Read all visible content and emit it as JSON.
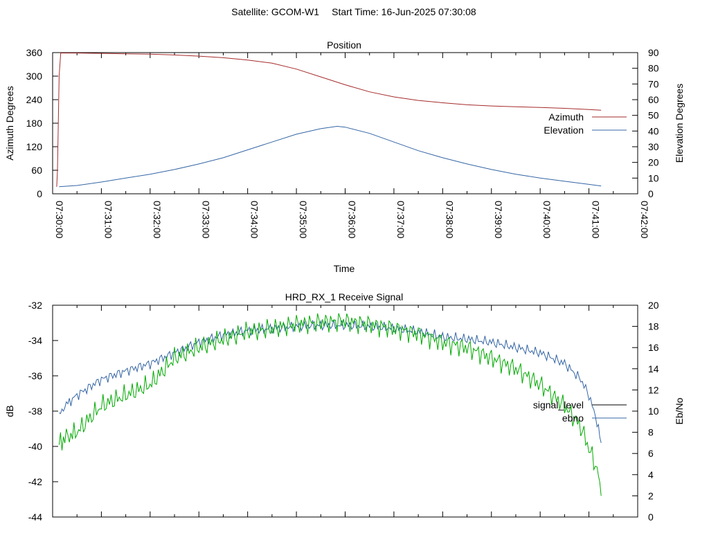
{
  "header": {
    "satellite": "Satellite: GCOM-W1",
    "start_time": "Start Time: 16-Jun-2025 07:30:08"
  },
  "chart_data": [
    {
      "type": "line",
      "title": "Position",
      "xlabel": "Time",
      "ylabel": "Azimuth Degrees",
      "y2label": "Elevation Degrees",
      "xlim": [
        "07:30:00",
        "07:42:00"
      ],
      "ylim": [
        0,
        360
      ],
      "y2lim": [
        0,
        90
      ],
      "x_ticks": [
        "07:30:00",
        "07:31:00",
        "07:32:00",
        "07:33:00",
        "07:34:00",
        "07:35:00",
        "07:36:00",
        "07:37:00",
        "07:38:00",
        "07:39:00",
        "07:40:00",
        "07:41:00",
        "07:42:00"
      ],
      "y_ticks": [
        0,
        60,
        120,
        180,
        240,
        300,
        360
      ],
      "y2_ticks": [
        0,
        10,
        20,
        30,
        40,
        50,
        60,
        70,
        80,
        90
      ],
      "legend": "right",
      "series": [
        {
          "name": "Azimuth",
          "axis": "left",
          "color": "#a52a2a",
          "x": [
            "07:30:05",
            "07:30:06",
            "07:30:07",
            "07:30:08",
            "07:30:10",
            "07:30:30",
            "07:31:00",
            "07:31:30",
            "07:32:00",
            "07:32:30",
            "07:33:00",
            "07:33:30",
            "07:34:00",
            "07:34:30",
            "07:35:00",
            "07:35:30",
            "07:36:00",
            "07:36:30",
            "07:37:00",
            "07:37:30",
            "07:38:00",
            "07:38:30",
            "07:39:00",
            "07:39:30",
            "07:40:00",
            "07:40:30",
            "07:41:00",
            "07:41:15"
          ],
          "y": [
            18,
            60,
            180,
            300,
            359,
            359,
            358,
            357,
            356,
            354,
            351,
            347,
            341,
            333,
            318,
            298,
            278,
            260,
            247,
            238,
            232,
            227,
            224,
            222,
            220,
            218,
            215,
            213
          ]
        },
        {
          "name": "Elevation",
          "axis": "right",
          "color": "#3465a4",
          "x": [
            "07:30:08",
            "07:30:30",
            "07:31:00",
            "07:31:30",
            "07:32:00",
            "07:32:30",
            "07:33:00",
            "07:33:30",
            "07:34:00",
            "07:34:30",
            "07:35:00",
            "07:35:30",
            "07:35:50",
            "07:36:00",
            "07:36:30",
            "07:37:00",
            "07:37:30",
            "07:38:00",
            "07:38:30",
            "07:39:00",
            "07:39:30",
            "07:40:00",
            "07:40:30",
            "07:41:00",
            "07:41:15"
          ],
          "y": [
            4.5,
            5.3,
            7.5,
            10,
            12.5,
            15.5,
            19,
            23,
            28,
            33,
            38,
            41.5,
            43,
            42.5,
            38.5,
            33,
            27.5,
            23,
            19,
            15.5,
            12.5,
            10,
            8,
            6,
            5
          ]
        }
      ]
    },
    {
      "type": "line",
      "title": "HRD_RX_1 Receive Signal",
      "ylabel": "dB",
      "y2label": "Eb/No",
      "xlim": [
        "07:30:00",
        "07:42:00"
      ],
      "ylim": [
        -44,
        -32
      ],
      "y2lim": [
        0,
        20
      ],
      "y_ticks": [
        -44,
        -42,
        -40,
        -38,
        -36,
        -34,
        -32
      ],
      "y2_ticks": [
        0,
        2,
        4,
        6,
        8,
        10,
        12,
        14,
        16,
        18,
        20
      ],
      "legend": "right",
      "series": [
        {
          "name": "signal_level",
          "axis": "left",
          "color": "#000000",
          "x": [],
          "y": []
        },
        {
          "name": "ebno",
          "axis": "right",
          "color": "#3465a4",
          "x": [
            "07:30:08",
            "07:30:15",
            "07:30:30",
            "07:31:00",
            "07:31:30",
            "07:32:00",
            "07:32:30",
            "07:33:00",
            "07:33:30",
            "07:34:00",
            "07:34:30",
            "07:35:00",
            "07:35:30",
            "07:36:00",
            "07:36:30",
            "07:37:00",
            "07:37:30",
            "07:38:00",
            "07:38:30",
            "07:39:00",
            "07:39:30",
            "07:40:00",
            "07:40:30",
            "07:40:50",
            "07:41:00",
            "07:41:10",
            "07:41:15"
          ],
          "y": [
            9.5,
            10.5,
            11.5,
            13,
            13.8,
            14.5,
            15.5,
            16.5,
            17.2,
            17.6,
            17.8,
            18,
            18.1,
            18.1,
            18,
            17.8,
            17.5,
            17,
            16.8,
            16.5,
            16,
            15.5,
            14.5,
            13,
            11.5,
            9,
            7
          ]
        },
        {
          "name": "",
          "axis": "right",
          "color": "#00aa00",
          "x": [
            "07:30:08",
            "07:30:15",
            "07:30:30",
            "07:31:00",
            "07:31:30",
            "07:32:00",
            "07:32:30",
            "07:33:00",
            "07:33:30",
            "07:34:00",
            "07:34:30",
            "07:35:00",
            "07:35:30",
            "07:36:00",
            "07:36:30",
            "07:37:00",
            "07:37:30",
            "07:38:00",
            "07:38:30",
            "07:39:00",
            "07:39:30",
            "07:40:00",
            "07:40:30",
            "07:40:50",
            "07:41:00",
            "07:41:10",
            "07:41:15"
          ],
          "y": [
            7,
            7.5,
            8,
            10.5,
            11.5,
            12.5,
            15,
            16,
            16.8,
            17.5,
            17.8,
            18.2,
            18.4,
            18.5,
            18.2,
            17.8,
            17.3,
            16.5,
            16,
            15,
            14,
            12.5,
            10.5,
            8.5,
            6.5,
            4.5,
            2
          ]
        }
      ]
    }
  ]
}
